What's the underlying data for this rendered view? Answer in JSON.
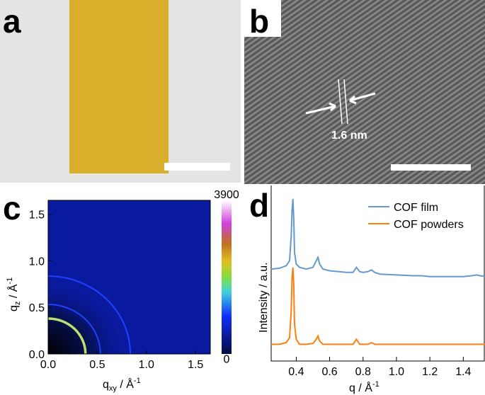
{
  "panels": {
    "a": {
      "label": "a"
    },
    "b": {
      "label": "b",
      "annotation": "1.6 nm"
    }
  },
  "chart_data": [
    {
      "type": "image",
      "label": "c",
      "xlabel": [
        "q",
        "xy",
        " / Å",
        "-1"
      ],
      "ylabel": [
        "q",
        "z",
        " / Å",
        "-1"
      ],
      "xlim": [
        0,
        1.65
      ],
      "ylim": [
        0,
        1.65
      ],
      "xticks": [
        {
          "value": 0,
          "label": "0.0"
        },
        0.5,
        {
          "value": 1,
          "label": "1.0"
        },
        1.5
      ],
      "yticks": [
        {
          "value": 0,
          "label": "0.0"
        },
        0.5,
        {
          "value": 1,
          "label": "1.0"
        },
        1.5
      ],
      "ring_q": 0.38,
      "clim": [
        0,
        3900
      ],
      "cticks": [
        0,
        3900
      ]
    },
    {
      "type": "line",
      "label": "d",
      "xlabel": [
        "q / Å",
        "-1"
      ],
      "ylabel": "Intensity / a.u.",
      "xlim": [
        0.25,
        1.53
      ],
      "ylim": [
        0,
        10.5
      ],
      "xticks": [
        0.4,
        0.6,
        0.8,
        {
          "value": 1,
          "label": "1.0"
        },
        1.2,
        1.4
      ],
      "legend": "upper right",
      "x": [
        0.25,
        0.3,
        0.34,
        0.36,
        0.37,
        0.375,
        0.38,
        0.385,
        0.39,
        0.4,
        0.42,
        0.46,
        0.5,
        0.52,
        0.53,
        0.54,
        0.56,
        0.6,
        0.65,
        0.7,
        0.74,
        0.76,
        0.78,
        0.8,
        0.83,
        0.85,
        0.87,
        0.9,
        1.0,
        1.1,
        1.15,
        1.2,
        1.3,
        1.4,
        1.45,
        1.48,
        1.5,
        1.55
      ],
      "series": [
        {
          "name": "COF film",
          "color": "#6699cc",
          "values": [
            5.5,
            5.55,
            5.7,
            6.0,
            7.5,
            9.0,
            9.7,
            8.5,
            6.5,
            5.8,
            5.6,
            5.5,
            5.6,
            6.0,
            6.2,
            5.8,
            5.5,
            5.4,
            5.35,
            5.3,
            5.3,
            5.6,
            5.35,
            5.3,
            5.35,
            5.45,
            5.3,
            5.2,
            5.15,
            5.1,
            5.1,
            5.05,
            5.05,
            5.05,
            5.1,
            5.15,
            5.1,
            5.05
          ]
        },
        {
          "name": "COF powders",
          "color": "#ff7f0e",
          "values": [
            1.0,
            1.0,
            1.1,
            1.4,
            3.0,
            5.0,
            5.6,
            4.5,
            2.2,
            1.3,
            1.0,
            1.0,
            1.05,
            1.3,
            1.5,
            1.2,
            1.0,
            1.0,
            1.0,
            1.0,
            1.0,
            1.3,
            1.0,
            1.0,
            1.0,
            1.1,
            1.0,
            1.0,
            1.0,
            1.0,
            1.0,
            1.0,
            1.0,
            1.0,
            1.0,
            1.0,
            1.0,
            1.0
          ]
        }
      ]
    }
  ]
}
